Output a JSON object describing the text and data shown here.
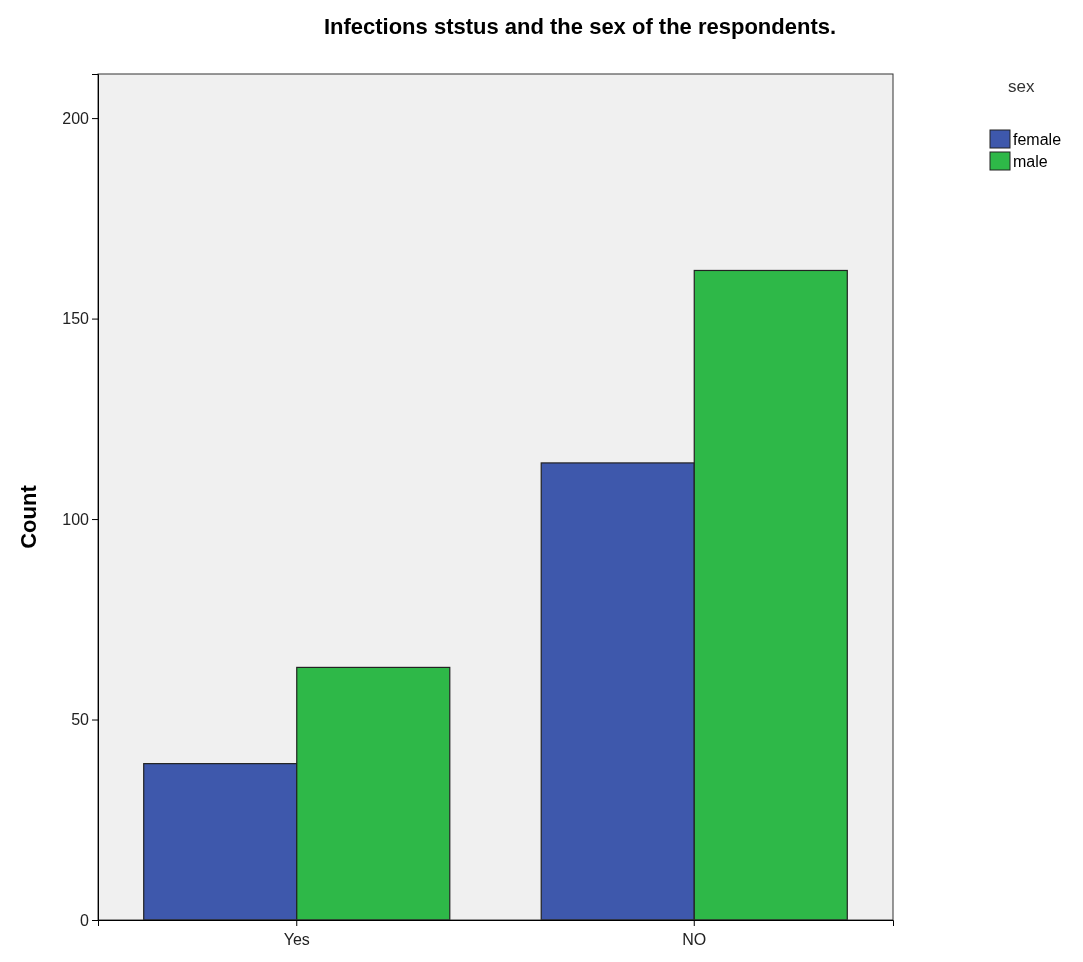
{
  "chart_data": {
    "type": "bar",
    "title": "Infections ststus and the sex of the respondents.",
    "ylabel": "Count",
    "legend_title": "sex",
    "categories": [
      "Yes",
      "NO"
    ],
    "series": [
      {
        "name": "female",
        "color": "#3e58ac",
        "values": [
          39,
          114
        ]
      },
      {
        "name": "male",
        "color": "#2eb848",
        "values": [
          63,
          162
        ]
      }
    ],
    "ylim": [
      0,
      211
    ],
    "yticks": [
      0,
      50,
      100,
      150,
      200
    ],
    "grid": false,
    "legend": "right"
  }
}
